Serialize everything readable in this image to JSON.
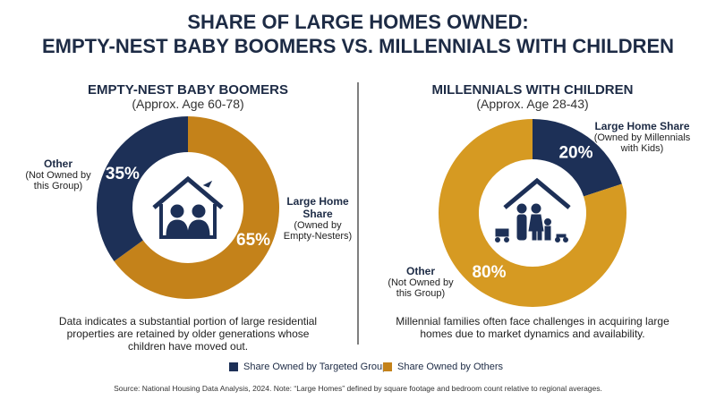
{
  "title": [
    "SHARE OF LARGE HOMES OWNED:",
    "EMPTY-NEST BABY BOOMERS VS. MILLENNIALS WITH CHILDREN"
  ],
  "chart_data": [
    {
      "type": "pie",
      "donut": true,
      "title": "EMPTY-NEST BABY BOOMERS",
      "subtitle": "(Approx. Age 60-78)",
      "labels": [
        "Large Home Share",
        "Other"
      ],
      "sublabels": [
        "(Owned by Empty-Nesters)",
        "(Not Owned by this Group)"
      ],
      "values": [
        65,
        35
      ],
      "value_labels": [
        "65%",
        "35%"
      ],
      "colors": [
        "#c4821a",
        "#1d3057"
      ],
      "description": "Data indicates a substantial portion of large residential properties are retained by older generations whose children have moved out."
    },
    {
      "type": "pie",
      "donut": true,
      "title": "MILLENNIALS WITH CHILDREN",
      "subtitle": "(Approx. Age 28-43)",
      "labels": [
        "Large Home Share",
        "Other"
      ],
      "sublabels": [
        "(Owned by Millennials with Kids)",
        "(Not Owned by this Group)"
      ],
      "values": [
        20,
        80
      ],
      "value_labels": [
        "20%",
        "80%"
      ],
      "colors": [
        "#1d3057",
        "#d69a22"
      ],
      "description": "Millennial families often face challenges in acquiring large homes due to market dynamics and availability."
    }
  ],
  "legend": [
    {
      "name": "Share Owned by Targeted Group",
      "color": "#1d3057"
    },
    {
      "name": "Share Owned by Others",
      "color": "#c4821a"
    }
  ],
  "source": "Source: National Housing Data Analysis, 2024. Note: “Large Homes” defined by square footage and bedroom count relative to regional averages."
}
